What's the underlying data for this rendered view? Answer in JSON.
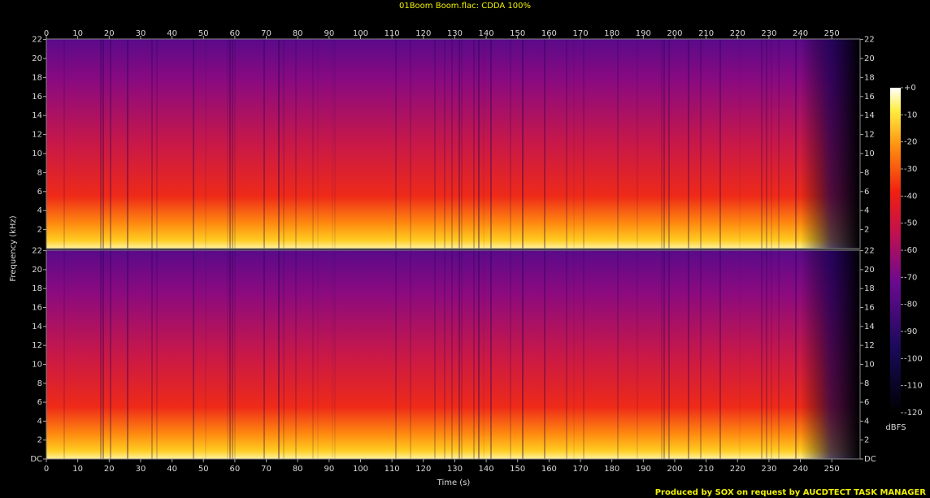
{
  "chart_data": {
    "type": "spectrogram",
    "title": "01Boom Boom.flac: CDDA 100%",
    "xlabel": "Time (s)",
    "ylabel": "Frequency (kHz)",
    "xlim": [
      0,
      259
    ],
    "xticks": [
      0,
      10,
      20,
      30,
      40,
      50,
      60,
      70,
      80,
      90,
      100,
      110,
      120,
      130,
      140,
      150,
      160,
      170,
      180,
      190,
      200,
      210,
      220,
      230,
      240,
      250
    ],
    "ylim": [
      0,
      22.05
    ],
    "channels": [
      {
        "yticks": [
          2,
          4,
          6,
          8,
          10,
          12,
          14,
          16,
          18,
          20,
          22
        ]
      },
      {
        "yticks": [
          {
            "value": 0,
            "label": "DC"
          },
          2,
          4,
          6,
          8,
          10,
          12,
          14,
          16,
          18,
          20,
          22
        ]
      }
    ],
    "colorbar": {
      "label": "dBFS",
      "lim": [
        -120,
        0
      ],
      "ticks": [
        {
          "value": 0,
          "label": "+0"
        },
        -10,
        -20,
        -30,
        -40,
        -50,
        -60,
        -70,
        -80,
        -90,
        -100,
        -110,
        -120
      ]
    },
    "footer": "Produced by SOX on request by AUCDTECT TASK MANAGER"
  }
}
